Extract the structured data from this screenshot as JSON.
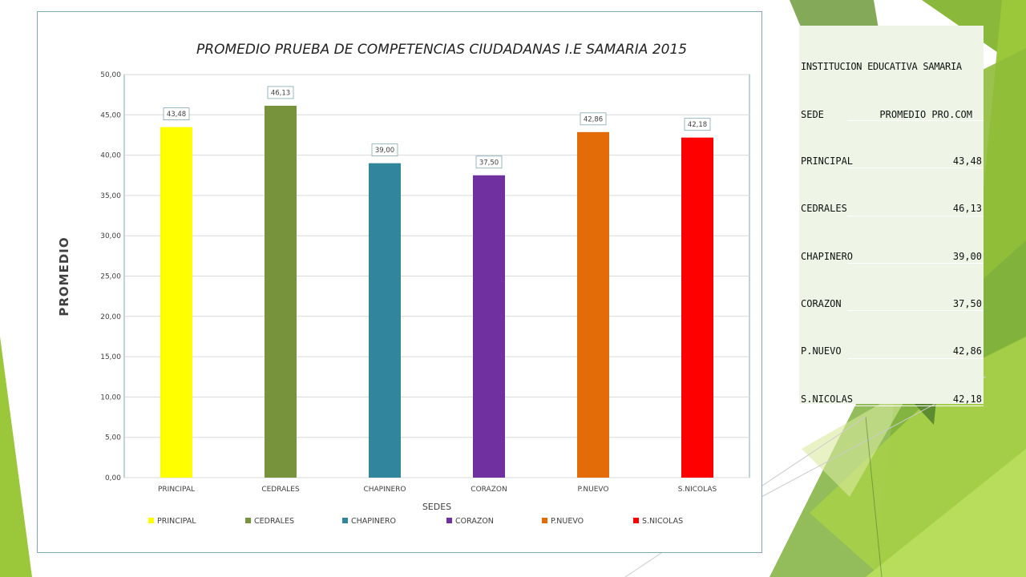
{
  "chart_data": {
    "type": "bar",
    "title": "PROMEDIO PRUEBA DE COMPETENCIAS CIUDADANAS I.E SAMARIA 2015",
    "xlabel": "SEDES",
    "ylabel": "PROMEDIO",
    "ylim": [
      0,
      50
    ],
    "yticks": [
      "0,00",
      "5,00",
      "10,00",
      "15,00",
      "20,00",
      "25,00",
      "30,00",
      "35,00",
      "40,00",
      "45,00",
      "50,00"
    ],
    "categories": [
      "PRINCIPAL",
      "CEDRALES",
      "CHAPINERO",
      "CORAZON",
      "P.NUEVO",
      "S.NICOLAS"
    ],
    "values": [
      43.48,
      46.13,
      39.0,
      37.5,
      42.86,
      42.18
    ],
    "data_labels": [
      "43,48",
      "46,13",
      "39,00",
      "37,50",
      "42,86",
      "42,18"
    ],
    "colors": [
      "#ffff00",
      "#77933c",
      "#31859c",
      "#7030a0",
      "#e36c09",
      "#ff0000"
    ],
    "legend": [
      "PRINCIPAL",
      "CEDRALES",
      "CHAPINERO",
      "CORAZON",
      "P.NUEVO",
      "S.NICOLAS"
    ],
    "legend_position": "bottom",
    "grid": true
  },
  "table": {
    "title": "INSTITUCION EDUCATIVA SAMARIA",
    "headers": [
      "SEDE",
      "PROMEDIO PRO.COM"
    ],
    "rows": [
      [
        "PRINCIPAL",
        "43,48"
      ],
      [
        "CEDRALES",
        "46,13"
      ],
      [
        "CHAPINERO",
        "39,00"
      ],
      [
        "CORAZON",
        "37,50"
      ],
      [
        "P.NUEVO",
        "42,86"
      ],
      [
        "S.NICOLAS",
        "42,18"
      ]
    ]
  }
}
